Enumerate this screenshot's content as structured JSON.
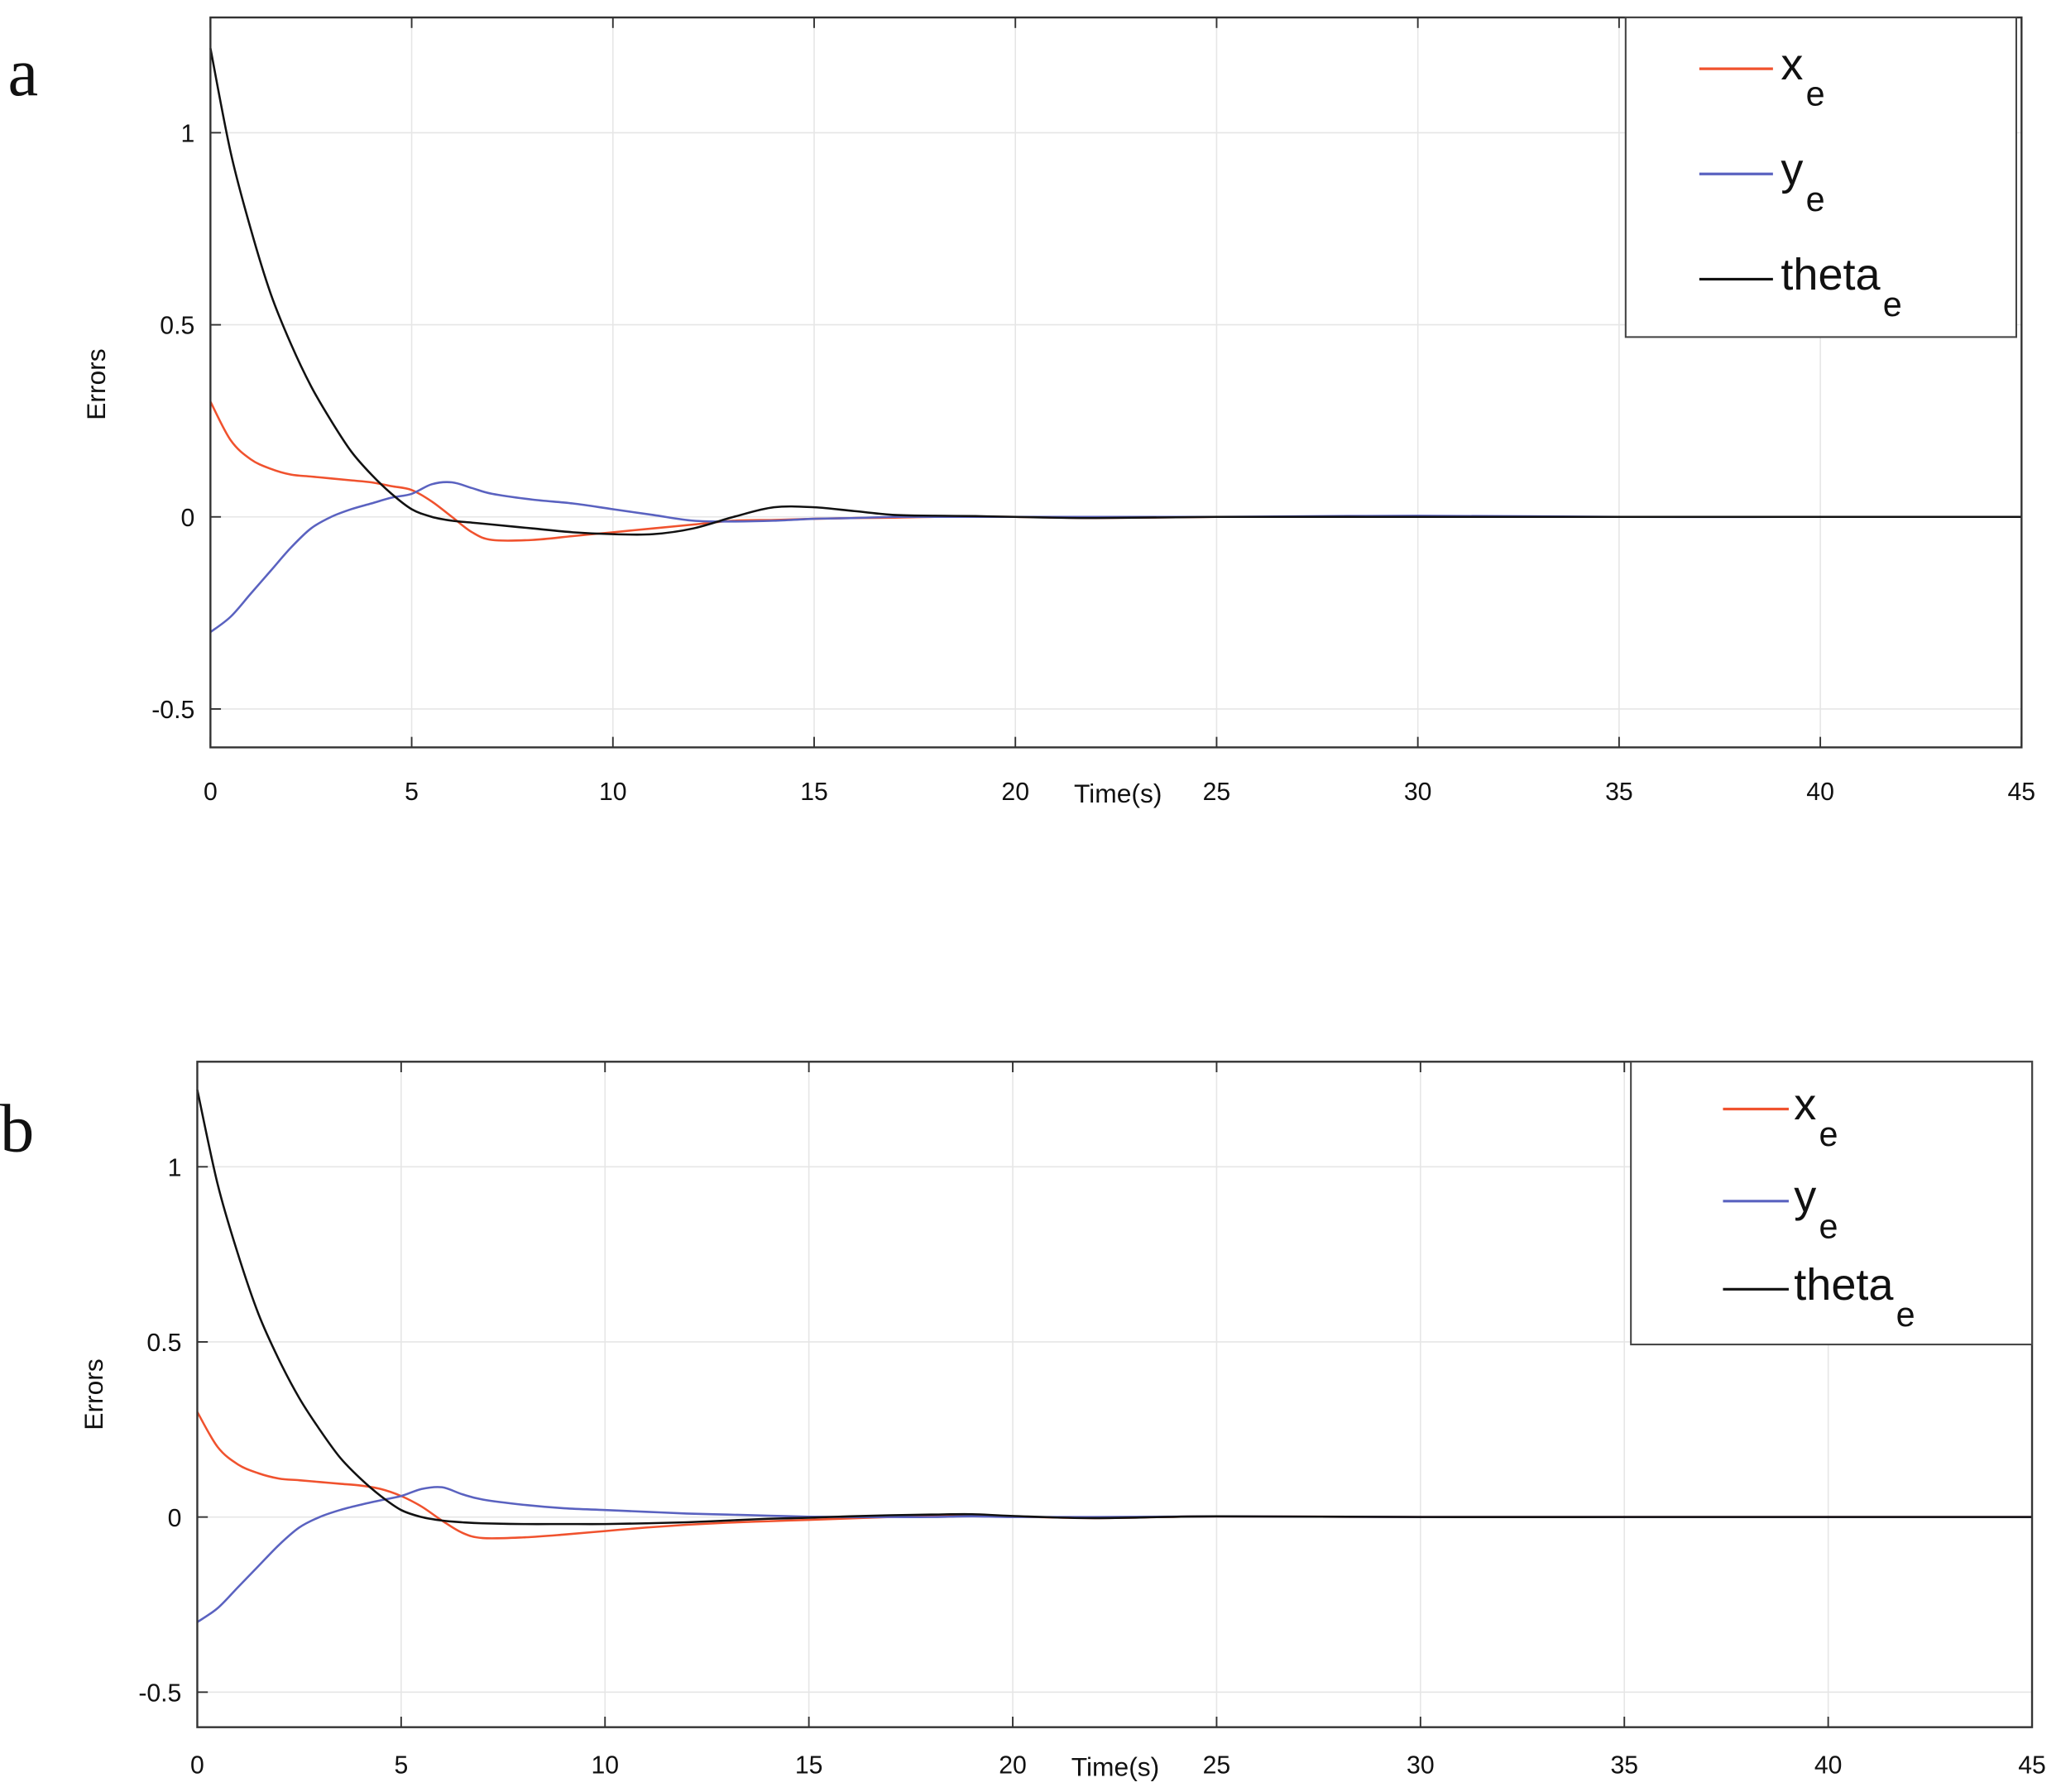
{
  "colors": {
    "x_e": "#f0522e",
    "y_e": "#5a62c0",
    "theta_e": "#111111",
    "grid": "#e6e6e6",
    "axis": "#333333"
  },
  "chart_data": [
    {
      "panel_label": "a",
      "type": "line",
      "xlabel": "Time(s)",
      "ylabel": "Errors",
      "xlim": [
        0,
        45
      ],
      "ylim": [
        -0.6,
        1.3
      ],
      "xticks": [
        "0",
        "5",
        "10",
        "15",
        "20",
        "25",
        "30",
        "35",
        "40",
        "45"
      ],
      "xtick_values": [
        0,
        5,
        10,
        15,
        20,
        25,
        30,
        35,
        40,
        45
      ],
      "yticks": [
        "-0.5",
        "0",
        "0.5",
        "1"
      ],
      "ytick_values": [
        -0.5,
        0,
        0.5,
        1
      ],
      "grid": true,
      "legend_position": "top-right",
      "x": [
        0,
        0.5,
        1,
        1.5,
        2,
        2.5,
        3,
        3.5,
        4,
        4.5,
        5,
        5.5,
        6,
        6.5,
        7,
        8,
        9,
        10,
        11,
        12,
        13,
        14,
        15,
        16,
        17,
        18,
        19,
        20,
        22,
        25,
        30,
        35,
        40,
        45
      ],
      "series": [
        {
          "name": "x_e",
          "label": "x",
          "sub": "e",
          "color_key": "x_e",
          "values": [
            0.3,
            0.2,
            0.15,
            0.125,
            0.11,
            0.105,
            0.1,
            0.095,
            0.09,
            0.08,
            0.07,
            0.04,
            0.0,
            -0.04,
            -0.06,
            -0.06,
            -0.05,
            -0.04,
            -0.03,
            -0.02,
            -0.01,
            -0.008,
            -0.005,
            -0.003,
            -0.002,
            0,
            0,
            0,
            -0.003,
            0,
            0,
            0,
            0,
            0
          ]
        },
        {
          "name": "y_e",
          "label": "y",
          "sub": "e",
          "color_key": "y_e",
          "values": [
            -0.3,
            -0.26,
            -0.2,
            -0.14,
            -0.08,
            -0.03,
            0.0,
            0.02,
            0.035,
            0.05,
            0.06,
            0.085,
            0.09,
            0.075,
            0.06,
            0.045,
            0.035,
            0.02,
            0.005,
            -0.01,
            -0.012,
            -0.01,
            -0.005,
            -0.003,
            0,
            0,
            0,
            0,
            0,
            0,
            0.003,
            0,
            0,
            0
          ]
        },
        {
          "name": "theta_e",
          "label": "theta",
          "sub": "e",
          "color_key": "theta_e",
          "values": [
            1.22,
            0.95,
            0.75,
            0.58,
            0.45,
            0.34,
            0.25,
            0.17,
            0.11,
            0.06,
            0.02,
            0.0,
            -0.01,
            -0.015,
            -0.02,
            -0.03,
            -0.04,
            -0.045,
            -0.045,
            -0.03,
            0.0,
            0.025,
            0.025,
            0.015,
            0.005,
            0.003,
            0.002,
            0,
            -0.003,
            0,
            0,
            0,
            0,
            0
          ]
        }
      ]
    },
    {
      "panel_label": "b",
      "type": "line",
      "xlabel": "Time(s)",
      "ylabel": "Errors",
      "xlim": [
        0,
        45
      ],
      "ylim": [
        -0.6,
        1.3
      ],
      "xticks": [
        "0",
        "5",
        "10",
        "15",
        "20",
        "25",
        "30",
        "35",
        "40",
        "45"
      ],
      "xtick_values": [
        0,
        5,
        10,
        15,
        20,
        25,
        30,
        35,
        40,
        45
      ],
      "yticks": [
        "-0.5",
        "0",
        "0.5",
        "1"
      ],
      "ytick_values": [
        -0.5,
        0,
        0.5,
        1
      ],
      "grid": true,
      "legend_position": "top-right",
      "x": [
        0,
        0.5,
        1,
        1.5,
        2,
        2.5,
        3,
        3.5,
        4,
        4.5,
        5,
        5.5,
        6,
        6.5,
        7,
        8,
        9,
        10,
        11,
        12,
        13,
        14,
        15,
        16,
        17,
        18,
        19,
        20,
        22,
        25,
        30,
        35,
        40,
        45
      ],
      "series": [
        {
          "name": "x_e",
          "label": "x",
          "sub": "e",
          "color_key": "x_e",
          "values": [
            0.3,
            0.2,
            0.15,
            0.125,
            0.11,
            0.105,
            0.1,
            0.095,
            0.09,
            0.08,
            0.06,
            0.03,
            -0.01,
            -0.045,
            -0.06,
            -0.058,
            -0.05,
            -0.04,
            -0.03,
            -0.022,
            -0.016,
            -0.012,
            -0.008,
            -0.004,
            0,
            0.003,
            0.005,
            0.002,
            -0.003,
            0.002,
            0,
            0,
            0,
            0
          ]
        },
        {
          "name": "y_e",
          "label": "y",
          "sub": "e",
          "color_key": "y_e",
          "values": [
            -0.3,
            -0.26,
            -0.2,
            -0.14,
            -0.08,
            -0.03,
            0.0,
            0.02,
            0.035,
            0.048,
            0.06,
            0.08,
            0.085,
            0.065,
            0.05,
            0.035,
            0.025,
            0.02,
            0.015,
            0.01,
            0.007,
            0.004,
            0.001,
            0,
            0,
            0,
            0.002,
            0,
            0,
            0.002,
            0,
            0,
            0,
            0
          ]
        },
        {
          "name": "theta_e",
          "label": "theta",
          "sub": "e",
          "color_key": "theta_e",
          "values": [
            1.22,
            0.95,
            0.75,
            0.58,
            0.45,
            0.34,
            0.25,
            0.17,
            0.11,
            0.06,
            0.02,
            0.0,
            -0.01,
            -0.015,
            -0.018,
            -0.02,
            -0.02,
            -0.02,
            -0.018,
            -0.015,
            -0.01,
            -0.005,
            -0.002,
            0.002,
            0.005,
            0.007,
            0.008,
            0.003,
            -0.003,
            0.002,
            0,
            0,
            0,
            0
          ]
        }
      ]
    }
  ]
}
